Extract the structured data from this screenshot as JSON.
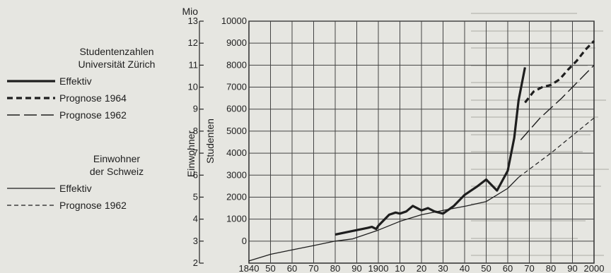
{
  "chart_data": {
    "type": "line",
    "xlim": [
      1840,
      2000
    ],
    "x_ticks": [
      "1840",
      "50",
      "60",
      "70",
      "80",
      "90",
      "1900",
      "10",
      "20",
      "30",
      "40",
      "50",
      "60",
      "70",
      "80",
      "90",
      "2000"
    ],
    "left_axis": {
      "label": "Einwohner",
      "unit": "Mio",
      "ylim": [
        2,
        13
      ],
      "ticks": [
        "2",
        "3",
        "4",
        "5",
        "6",
        "7",
        "8",
        "9",
        "10",
        "11",
        "12",
        "13"
      ]
    },
    "right_axis": {
      "label": "Studenten",
      "ylim": [
        -1000,
        10000
      ],
      "ticks": [
        "0",
        "1000",
        "2000",
        "3000",
        "4000",
        "5000",
        "6000",
        "7000",
        "8000",
        "9000",
        "10000"
      ]
    },
    "legend_groups": [
      {
        "title_lines": [
          "Studentenzahlen",
          "Universität Zürich"
        ],
        "entries": [
          {
            "label": "Effektiv",
            "style": "thick-solid"
          },
          {
            "label": "Prognose 1964",
            "style": "thick-dashed"
          },
          {
            "label": "Prognose 1962",
            "style": "long-dashed"
          }
        ]
      },
      {
        "title_lines": [
          "Einwohner",
          "der Schweiz"
        ],
        "entries": [
          {
            "label": "Effektiv",
            "style": "thin-solid"
          },
          {
            "label": "Prognose 1962",
            "style": "thin-dashed"
          }
        ]
      }
    ],
    "series": [
      {
        "axis": "right",
        "style": "thick-solid",
        "x": [
          1880,
          1885,
          1890,
          1895,
          1897,
          1899,
          1900,
          1905,
          1908,
          1910,
          1913,
          1916,
          1920,
          1923,
          1926,
          1930,
          1935,
          1940,
          1943,
          1946,
          1950,
          1955,
          1960,
          1963,
          1965,
          1968
        ],
        "y": [
          300,
          400,
          500,
          600,
          650,
          550,
          700,
          1200,
          1300,
          1250,
          1350,
          1600,
          1400,
          1500,
          1350,
          1250,
          1600,
          2100,
          2300,
          2500,
          2800,
          2300,
          3200,
          4700,
          6400,
          7900
        ]
      },
      {
        "axis": "right",
        "style": "thick-dashed",
        "x": [
          1968,
          1972,
          1976,
          1980,
          1984,
          1988,
          1992,
          1996,
          2000
        ],
        "y": [
          6300,
          6800,
          7000,
          7100,
          7350,
          7800,
          8200,
          8700,
          9100
        ]
      },
      {
        "axis": "right",
        "style": "long-dashed",
        "x": [
          1966,
          1975,
          1985,
          1995,
          2000
        ],
        "y": [
          4600,
          5600,
          6500,
          7500,
          8000
        ]
      },
      {
        "axis": "left",
        "style": "thin-solid",
        "x": [
          1840,
          1850,
          1860,
          1870,
          1880,
          1888,
          1900,
          1910,
          1920,
          1930,
          1941,
          1950,
          1960,
          1965
        ],
        "y": [
          2.1,
          2.4,
          2.6,
          2.8,
          3.0,
          3.1,
          3.5,
          3.9,
          4.2,
          4.4,
          4.6,
          4.8,
          5.4,
          5.9
        ]
      },
      {
        "axis": "left",
        "style": "thin-dashed",
        "x": [
          1965,
          1980,
          2000
        ],
        "y": [
          5.9,
          7.0,
          8.6
        ]
      }
    ]
  }
}
